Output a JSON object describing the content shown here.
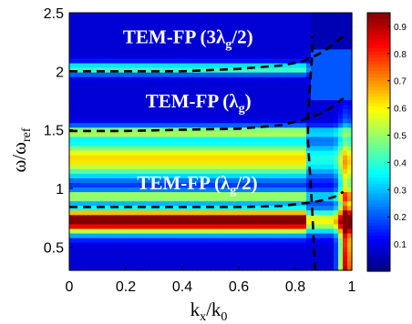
{
  "chart_data": {
    "type": "heatmap",
    "title": "",
    "xlabel": {
      "base": "k",
      "sub": "x",
      "mid": "/k",
      "sub2": "0"
    },
    "ylabel": {
      "base": "ω/ω",
      "sub": "ref"
    },
    "xlim": [
      0,
      1
    ],
    "ylim": [
      0.3,
      2.5
    ],
    "x_ticks": [
      "0",
      "0.2",
      "0.4",
      "0.6",
      "0.8",
      "1"
    ],
    "y_ticks": [
      "0.5",
      "1",
      "1.5",
      "2",
      "2.5"
    ],
    "colorbar": {
      "range": [
        0,
        0.95
      ],
      "ticks": [
        "0.1",
        "0.2",
        "0.3",
        "0.4",
        "0.5",
        "0.6",
        "0.7",
        "0.8",
        "0.9"
      ],
      "colormap": "jet"
    },
    "bands": [
      {
        "y": 0.72,
        "width": 0.1,
        "amp": 0.95
      },
      {
        "y": 0.93,
        "width": 0.05,
        "amp": 0.45
      },
      {
        "y": 1.25,
        "width": 0.16,
        "amp": 0.55
      },
      {
        "y": 1.48,
        "width": 0.05,
        "amp": 0.4
      },
      {
        "y": 2.02,
        "width": 0.05,
        "amp": 0.35
      }
    ],
    "annotations": [
      {
        "id": "a1",
        "pre": "TEM-FP (3λ",
        "sub": "g",
        "post": "/2)",
        "x": 0.19,
        "y": 2.24
      },
      {
        "id": "a2",
        "pre": "TEM-FP (λ",
        "sub": "g",
        "post": ")",
        "x": 0.27,
        "y": 1.69
      },
      {
        "id": "a3",
        "pre": "TEM-FP (λ",
        "sub": "g",
        "post": "/2)",
        "x": 0.24,
        "y": 0.99
      }
    ],
    "dashed_curves": [
      {
        "name": "3λg/2",
        "x": [
          0,
          0.2,
          0.4,
          0.6,
          0.75,
          0.82,
          0.86,
          0.9,
          0.94,
          0.97
        ],
        "y": [
          2.0,
          2.0,
          2.0,
          2.02,
          2.05,
          2.08,
          2.12,
          2.17,
          2.24,
          2.3
        ]
      },
      {
        "name": "λg",
        "x": [
          0,
          0.2,
          0.4,
          0.6,
          0.75,
          0.82,
          0.86,
          0.9,
          0.94,
          0.97
        ],
        "y": [
          1.49,
          1.49,
          1.5,
          1.51,
          1.54,
          1.58,
          1.61,
          1.65,
          1.71,
          1.77
        ]
      },
      {
        "name": "λg/2",
        "x": [
          0,
          0.2,
          0.4,
          0.6,
          0.75,
          0.82,
          0.86,
          0.9,
          0.94,
          0.97
        ],
        "y": [
          0.84,
          0.84,
          0.84,
          0.84,
          0.85,
          0.87,
          0.88,
          0.9,
          0.93,
          0.97
        ]
      },
      {
        "name": "light-line",
        "x": [
          0.87,
          0.865,
          0.86,
          0.855,
          0.85,
          0.845,
          0.845,
          0.85,
          0.855,
          0.86,
          0.86
        ],
        "y": [
          0.3,
          0.55,
          0.8,
          1.0,
          1.2,
          1.4,
          1.6,
          1.8,
          2.0,
          2.15,
          2.3
        ]
      }
    ]
  }
}
